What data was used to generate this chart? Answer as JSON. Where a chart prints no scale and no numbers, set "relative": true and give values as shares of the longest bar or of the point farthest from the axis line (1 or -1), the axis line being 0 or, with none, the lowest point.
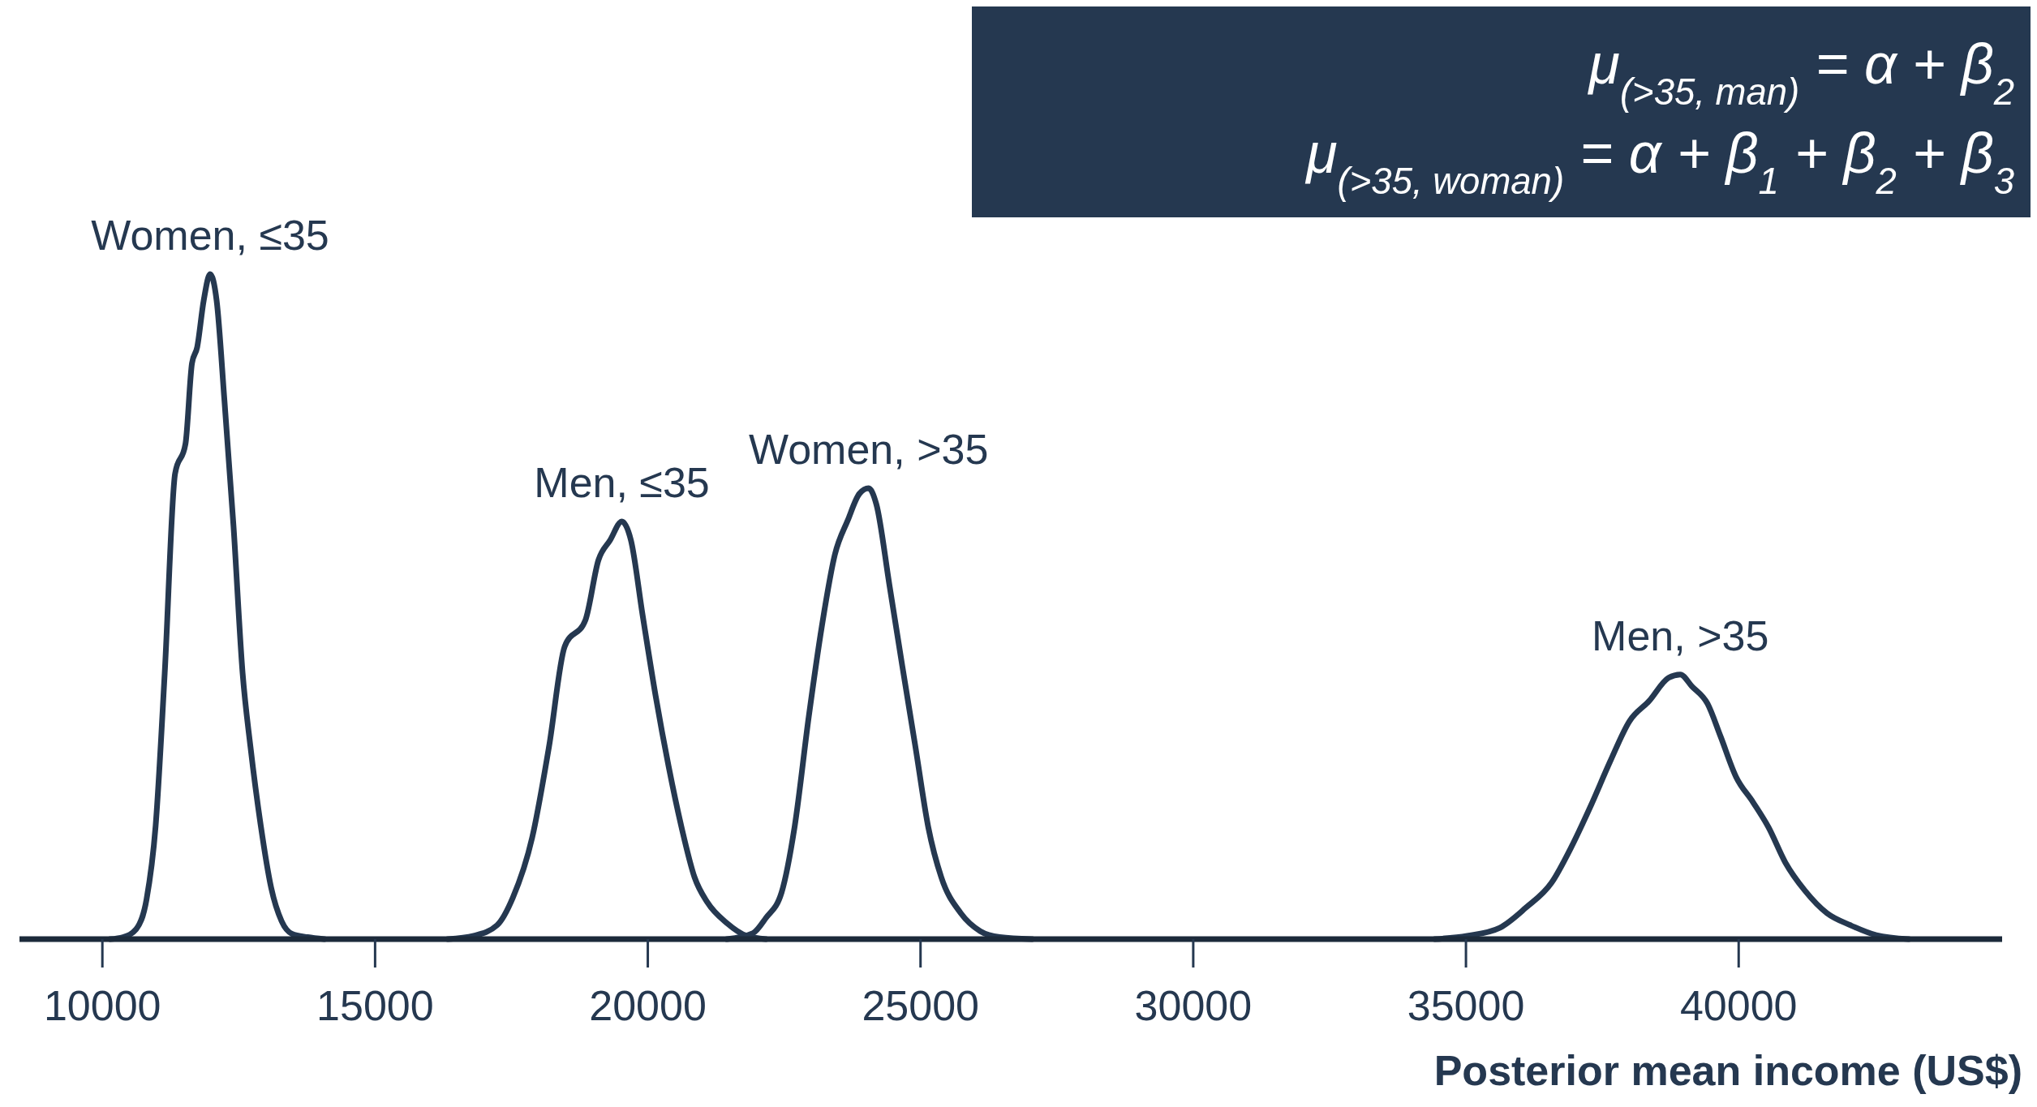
{
  "chart_data": {
    "type": "line",
    "relative": true,
    "xlabel": "Posterior mean income (US$)",
    "xlim": [
      8480,
      44830
    ],
    "xticks": [
      10000,
      15000,
      20000,
      25000,
      30000,
      35000,
      40000
    ],
    "annotations": [
      "μ$_{(>35, man)}$ = α + β$_{2}$",
      "μ$_{(>35, woman)}$ = α + β$_{1}$ + β$_{2}$ + β$_{3}$"
    ],
    "series": [
      {
        "name": "Women, ≤35",
        "color": "#253850",
        "x": [
          10143,
          10381,
          10619,
          10810,
          10976,
          11143,
          11333,
          11524,
          11643,
          11738,
          11857,
          11976,
          12095,
          12238,
          12405,
          12571,
          12714,
          12905,
          13095,
          13286,
          13476,
          13762,
          14071
        ],
        "values": [
          0,
          0.003,
          0.015,
          0.06,
          0.17,
          0.4,
          0.7,
          0.745,
          0.866,
          0.89,
          0.96,
          1,
          0.96,
          0.81,
          0.62,
          0.4,
          0.29,
          0.17,
          0.077,
          0.027,
          0.008,
          0.003,
          0
        ]
      },
      {
        "name": "Men, ≤35",
        "color": "#253850",
        "x": [
          16333,
          16810,
          17238,
          17524,
          17881,
          18190,
          18476,
          18857,
          19095,
          19310,
          19524,
          19690,
          19905,
          20143,
          20381,
          20619,
          20857,
          21095,
          21452,
          21810,
          22167
        ],
        "values": [
          0,
          0.005,
          0.021,
          0.062,
          0.153,
          0.29,
          0.44,
          0.48,
          0.57,
          0.6,
          0.628,
          0.6,
          0.487,
          0.366,
          0.26,
          0.168,
          0.093,
          0.055,
          0.024,
          0.005,
          0
        ]
      },
      {
        "name": "Women, >35",
        "color": "#253850",
        "x": [
          21452,
          21929,
          22167,
          22452,
          22690,
          22952,
          23190,
          23429,
          23667,
          23881,
          24048,
          24190,
          24429,
          24667,
          24905,
          25143,
          25381,
          25738,
          26095,
          26452,
          27048
        ],
        "values": [
          0,
          0.009,
          0.032,
          0.07,
          0.168,
          0.335,
          0.47,
          0.578,
          0.63,
          0.67,
          0.678,
          0.654,
          0.533,
          0.41,
          0.29,
          0.168,
          0.093,
          0.039,
          0.012,
          0.003,
          0
        ]
      },
      {
        "name": "Men, >35",
        "color": "#253850",
        "x": [
          34429,
          35024,
          35619,
          36095,
          36571,
          36929,
          37286,
          37643,
          38000,
          38357,
          38714,
          38929,
          39143,
          39429,
          39667,
          39952,
          40262,
          40548,
          40857,
          41214,
          41619,
          42048,
          42524,
          43119
        ],
        "values": [
          0,
          0.005,
          0.017,
          0.047,
          0.085,
          0.138,
          0.2,
          0.267,
          0.328,
          0.358,
          0.393,
          0.398,
          0.38,
          0.354,
          0.305,
          0.244,
          0.206,
          0.168,
          0.115,
          0.073,
          0.039,
          0.021,
          0.006,
          0
        ]
      }
    ]
  }
}
